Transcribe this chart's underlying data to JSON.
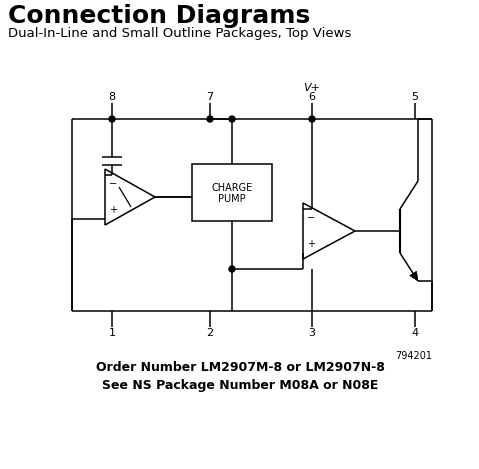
{
  "title": "Connection Diagrams",
  "subtitle": "Dual-In-Line and Small Outline Packages, Top Views",
  "order_text": "Order Number LM2907M-8 or LM2907N-8\nSee NS Package Number M08A or N08E",
  "part_number": "794201",
  "bg_color": "#ffffff",
  "line_color": "#000000",
  "vplus_label": "V+",
  "title_fontsize": 18,
  "subtitle_fontsize": 9.5,
  "order_fontsize": 9,
  "pin_fontsize": 8
}
